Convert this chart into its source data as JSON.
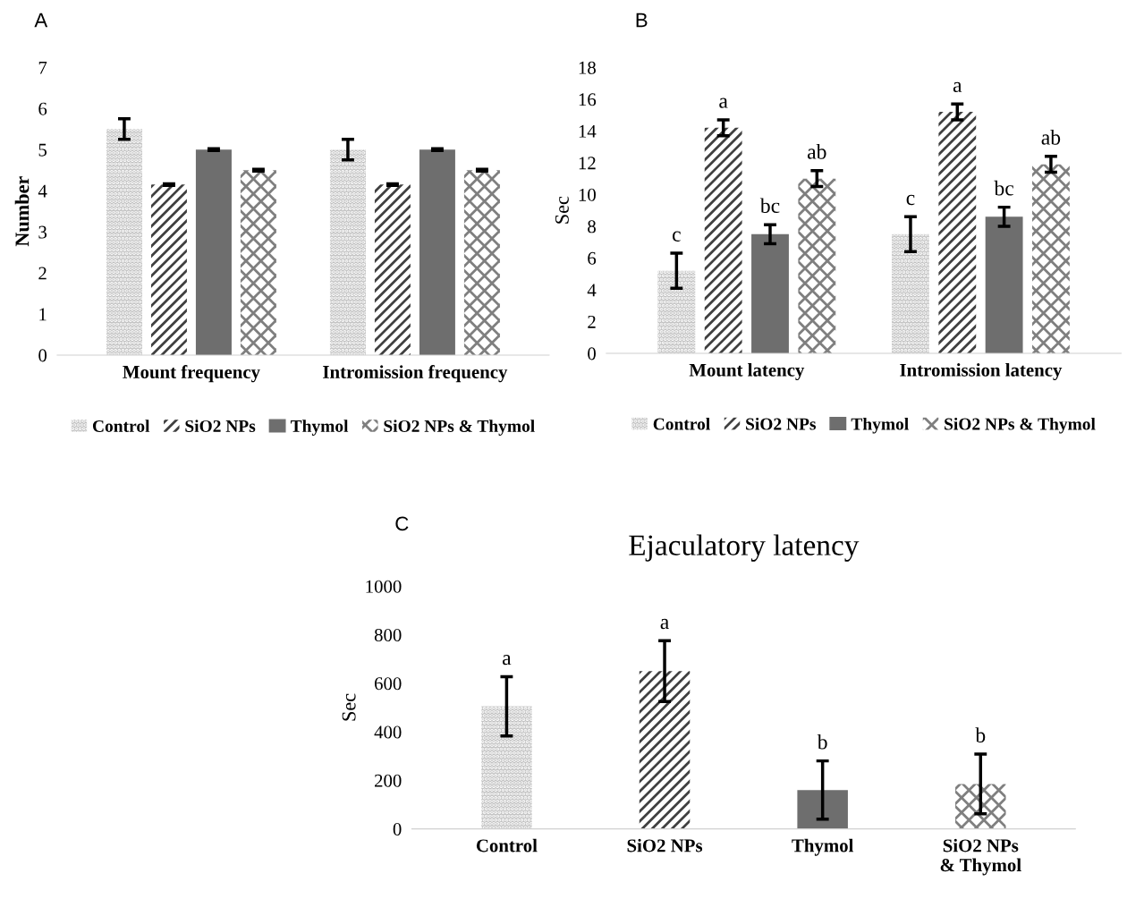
{
  "chart_data": [
    {
      "type": "bar",
      "ylabel": "Number",
      "categories": [
        "Mount frequency",
        "Intromission frequency"
      ],
      "ylim": [
        0,
        7
      ],
      "yticks": [
        0,
        1,
        2,
        3,
        4,
        5,
        6,
        7
      ],
      "grid": false,
      "legend": "bottom",
      "annotations": [
        "A"
      ],
      "series": [
        {
          "name": "Control",
          "color": "#c0c0c0",
          "values": [
            5.5,
            5.0
          ],
          "errors": [
            0.25,
            0.25
          ]
        },
        {
          "name": "SiO2 NPs",
          "color": "#404040",
          "values": [
            4.15,
            4.15
          ],
          "errors": [
            0.02,
            0.02
          ]
        },
        {
          "name": "Thymol",
          "color": "#6e6e6e",
          "values": [
            5.0,
            5.0
          ],
          "errors": [
            0.02,
            0.02
          ]
        },
        {
          "name": "SiO2 NPs & Thymol",
          "color": "#7f7f7f",
          "values": [
            4.5,
            4.5
          ],
          "errors": [
            0.02,
            0.02
          ]
        }
      ]
    },
    {
      "type": "bar",
      "ylabel": "Sec",
      "categories": [
        "Mount latency",
        "Intromission latency"
      ],
      "ylim": [
        0,
        18
      ],
      "yticks": [
        0,
        2,
        4,
        6,
        8,
        10,
        12,
        14,
        16,
        18
      ],
      "grid": false,
      "legend": "bottom",
      "annotations": [
        "B"
      ],
      "series": [
        {
          "name": "Control",
          "color": "#c0c0c0",
          "values": [
            5.2,
            7.5
          ],
          "errors": [
            1.1,
            1.1
          ],
          "value_labels": [
            "c",
            "c"
          ]
        },
        {
          "name": "SiO2 NPs",
          "color": "#404040",
          "values": [
            14.2,
            15.2
          ],
          "errors": [
            0.5,
            0.5
          ],
          "value_labels": [
            "a",
            "a"
          ]
        },
        {
          "name": "Thymol",
          "color": "#6e6e6e",
          "values": [
            7.5,
            8.6
          ],
          "errors": [
            0.6,
            0.6
          ],
          "value_labels": [
            "bc",
            "bc"
          ]
        },
        {
          "name": "SiO2 NPs & Thymol",
          "color": "#7f7f7f",
          "values": [
            11.0,
            11.9
          ],
          "errors": [
            0.5,
            0.5
          ],
          "value_labels": [
            "ab",
            "ab"
          ]
        }
      ]
    },
    {
      "type": "bar",
      "title": "Ejaculatory latency",
      "ylabel": "Sec",
      "categories": [
        "Control",
        "SiO2 NPs",
        "Thymol",
        "SiO2 NPs\n& Thymol"
      ],
      "ylim": [
        0,
        1000
      ],
      "yticks": [
        0,
        200,
        400,
        600,
        800,
        1000
      ],
      "grid": false,
      "annotations": [
        "C"
      ],
      "series": [
        {
          "colors": [
            "#c0c0c0",
            "#404040",
            "#6e6e6e",
            "#7f7f7f"
          ],
          "values": [
            505,
            650,
            160,
            185
          ],
          "errors": [
            122,
            125,
            120,
            123
          ],
          "value_labels": [
            "a",
            "a",
            "b",
            "b"
          ]
        }
      ]
    }
  ]
}
